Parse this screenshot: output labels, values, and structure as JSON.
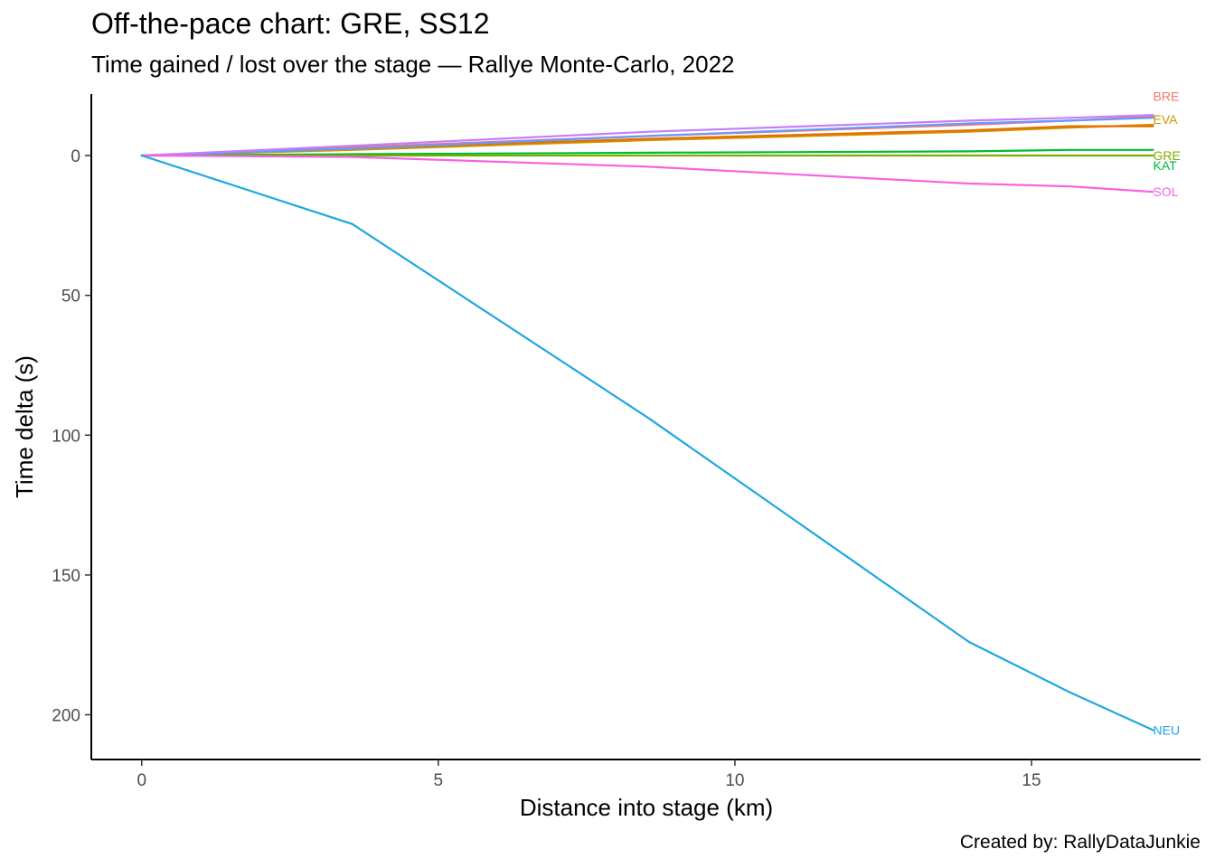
{
  "title": "Off-the-pace chart: GRE, SS12",
  "subtitle": "Time gained / lost over the stage — Rallye Monte-Carlo, 2022",
  "caption": "Created by: RallyDataJunkie",
  "chart_data": {
    "type": "line",
    "xlabel": "Distance into stage (km)",
    "ylabel": "Time delta (s)",
    "xlim": [
      -0.85,
      17.85
    ],
    "ylim": [
      -22,
      216
    ],
    "y_reversed": true,
    "xticks": [
      0,
      5,
      10,
      15
    ],
    "yticks": [
      0,
      50,
      100,
      150,
      200
    ],
    "grid": false,
    "legend": "direct labels at line ends",
    "series": [
      {
        "name": "BRE",
        "color": "#F8766D",
        "x": [
          0,
          3.55,
          8.55,
          13.95,
          15.65,
          17.05
        ],
        "y": [
          0,
          -3,
          -7,
          -11,
          -12.5,
          -14
        ]
      },
      {
        "name": "EVA",
        "color": "#CD9600",
        "x": [
          0,
          3.55,
          8.55,
          13.95,
          15.65,
          17.05
        ],
        "y": [
          0,
          -2,
          -5.5,
          -8.5,
          -10,
          -11
        ]
      },
      {
        "name": "KAT",
        "color": "#00BA38",
        "x": [
          0,
          3.55,
          8.55,
          13.95,
          15.65,
          17.05
        ],
        "y": [
          0,
          -0.5,
          -1,
          -1.5,
          -2,
          -2
        ]
      },
      {
        "name": "GRE",
        "color": "#7CAE00",
        "x": [
          0,
          3.55,
          8.55,
          13.95,
          15.65,
          17.05
        ],
        "y": [
          0,
          0,
          0,
          0,
          0,
          0
        ]
      },
      {
        "name": "",
        "color": "#E76F00",
        "x": [
          0,
          3.55,
          8.55,
          13.95,
          15.65,
          17.05
        ],
        "y": [
          0,
          -2.5,
          -6,
          -9,
          -10.5,
          -10.5
        ]
      },
      {
        "name": "",
        "color": "#619CFF",
        "x": [
          0,
          3.55,
          8.55,
          13.95,
          15.65,
          17.05
        ],
        "y": [
          0,
          -2.5,
          -7,
          -11.5,
          -12.5,
          -13.5
        ]
      },
      {
        "name": "",
        "color": "#C77CFF",
        "x": [
          0,
          3.55,
          8.55,
          13.95,
          15.65,
          17.05
        ],
        "y": [
          0,
          -3.5,
          -8.5,
          -12.5,
          -13.5,
          -14.5
        ]
      },
      {
        "name": "SOL",
        "color": "#F564E3",
        "x": [
          0,
          3.55,
          8.55,
          13.95,
          15.65,
          17.05
        ],
        "y": [
          0,
          0.5,
          4,
          10,
          11,
          13
        ]
      },
      {
        "name": "NEU",
        "color": "#1EA8DF",
        "x": [
          0,
          3.55,
          8.55,
          13.95,
          15.65,
          17.05
        ],
        "y": [
          0,
          24.5,
          94,
          174,
          192,
          205.5
        ]
      }
    ]
  }
}
